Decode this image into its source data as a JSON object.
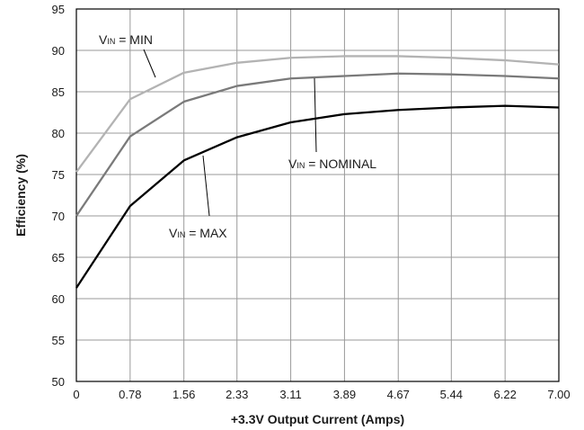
{
  "chart_data": {
    "type": "line",
    "title": "",
    "xlabel": "+3.3V Output Current (Amps)",
    "ylabel": "Efficiency (%)",
    "xlim": [
      0,
      7.0
    ],
    "ylim": [
      50,
      95
    ],
    "grid": true,
    "legend": "none",
    "x_ticks": [
      0,
      0.78,
      1.56,
      2.33,
      3.11,
      3.89,
      4.67,
      5.44,
      6.22,
      7.0
    ],
    "x_tick_labels": [
      "0",
      "0.78",
      "1.56",
      "2.33",
      "3.11",
      "3.89",
      "4.67",
      "5.44",
      "6.22",
      "7.00"
    ],
    "y_ticks": [
      50,
      55,
      60,
      65,
      70,
      75,
      80,
      85,
      90,
      95
    ],
    "y_tick_labels": [
      "50",
      "55",
      "60",
      "65",
      "70",
      "75",
      "80",
      "85",
      "90",
      "95"
    ],
    "x": [
      0,
      0.78,
      1.56,
      2.33,
      3.11,
      3.89,
      4.67,
      5.44,
      6.22,
      7.0
    ],
    "series": [
      {
        "name": "VIN = MIN",
        "color": "#b3b3b3",
        "values": [
          75.3,
          84.1,
          87.3,
          88.5,
          89.1,
          89.3,
          89.3,
          89.1,
          88.8,
          88.3
        ]
      },
      {
        "name": "VIN = NOMINAL",
        "color": "#7a7a7a",
        "values": [
          70.0,
          79.6,
          83.8,
          85.7,
          86.6,
          86.9,
          87.2,
          87.1,
          86.9,
          86.6
        ]
      },
      {
        "name": "VIN = MAX",
        "color": "#000000",
        "values": [
          61.3,
          71.2,
          76.7,
          79.5,
          81.3,
          82.3,
          82.8,
          83.1,
          83.3,
          83.1
        ]
      }
    ],
    "annotations": [
      {
        "prefix": "V",
        "sub": "IN",
        "text": " = MIN",
        "series": 0
      },
      {
        "prefix": "V",
        "sub": "IN",
        "text": " = NOMINAL",
        "series": 1
      },
      {
        "prefix": "V",
        "sub": "IN",
        "text": " = MAX",
        "series": 2
      }
    ]
  }
}
